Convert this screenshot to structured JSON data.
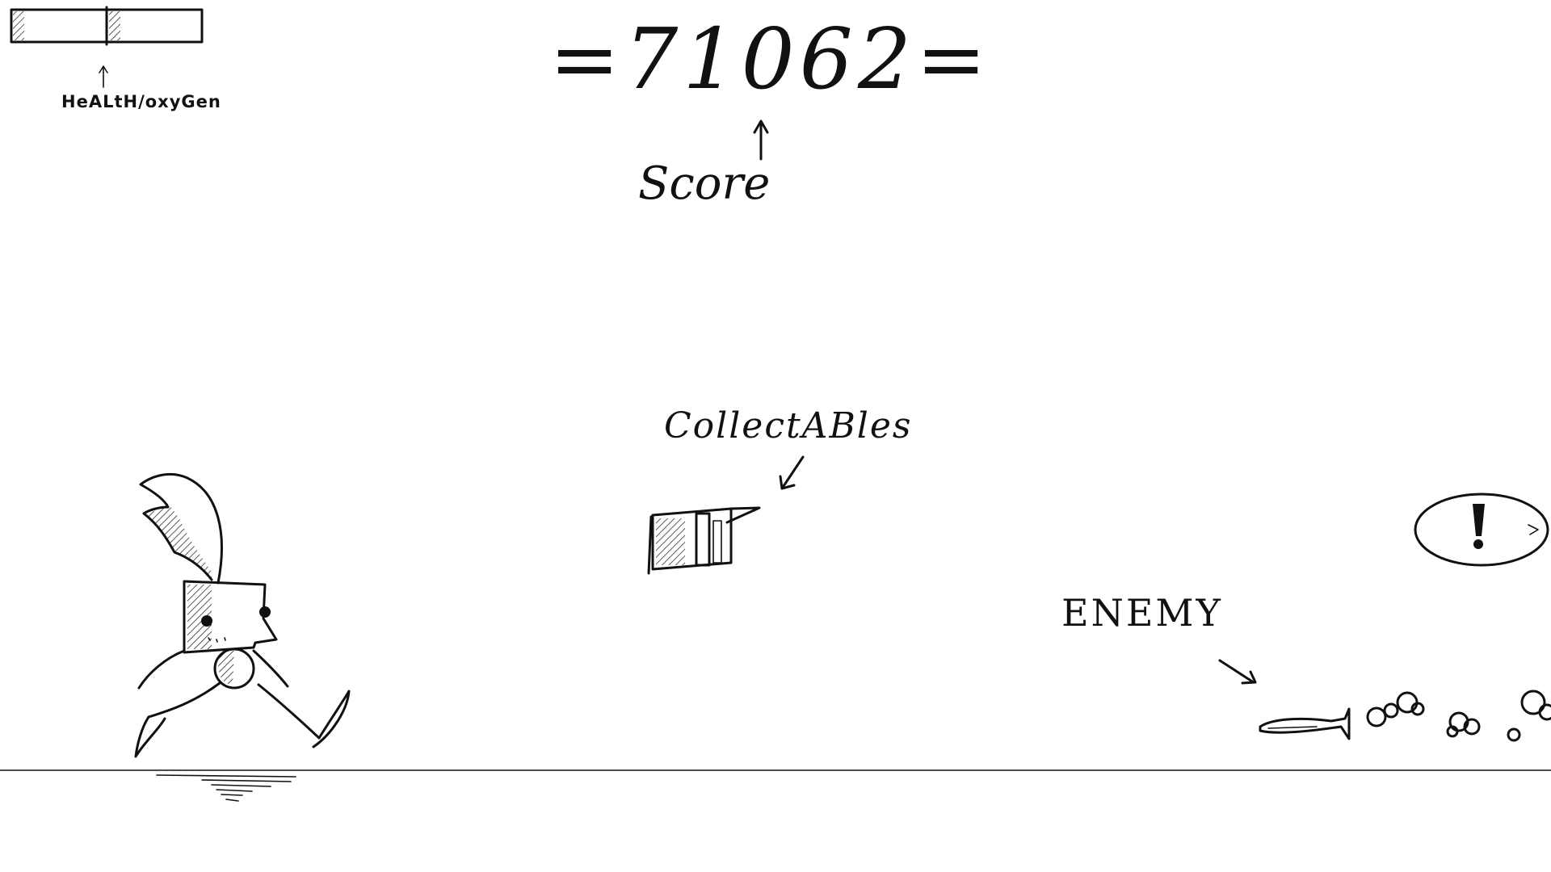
{
  "hud": {
    "status_label": "HeALtH/oxyGen"
  },
  "score": {
    "value": "=71062=",
    "label": "Score"
  },
  "annotations": {
    "collectables": "CollectABles",
    "enemy": "ENEMY"
  },
  "colors": {
    "ink": "#111111",
    "background": "#ffffff"
  },
  "icons": {
    "alert": "exclamation-icon"
  }
}
